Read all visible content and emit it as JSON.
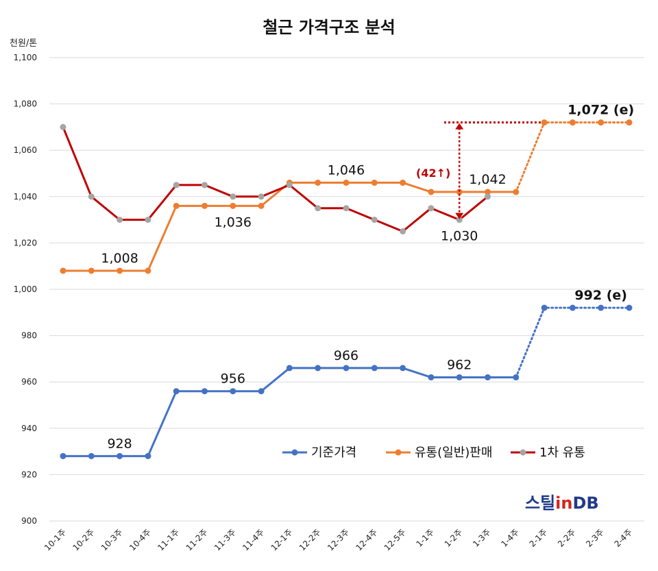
{
  "chart_data": {
    "type": "line",
    "title": "철근 가격구조 분석",
    "ylabel": "천원/톤",
    "xlabel": "",
    "ylim": [
      900,
      1100
    ],
    "yticks": [
      "900",
      "920",
      "940",
      "960",
      "980",
      "1,000",
      "1,020",
      "1,040",
      "1,060",
      "1,080",
      "1,100"
    ],
    "grid": true,
    "legend_position": "bottom-right",
    "categories": [
      "10-1주",
      "10-2주",
      "10-3주",
      "10-4주",
      "11-1주",
      "11-2주",
      "11-3주",
      "11-4주",
      "12-1주",
      "12-2주",
      "12-3주",
      "12-4주",
      "12-5주",
      "1-1주",
      "1-2주",
      "1-3주",
      "1-4주",
      "2-1주",
      "2-2주",
      "2-3주",
      "2-4주"
    ],
    "series": [
      {
        "name": "기준가격",
        "color": "#4472c4",
        "values": [
          928,
          928,
          928,
          928,
          956,
          956,
          956,
          956,
          966,
          966,
          966,
          966,
          966,
          962,
          962,
          962,
          962,
          992,
          992,
          992,
          992
        ],
        "dotted_from_index": 16
      },
      {
        "name": "유통(일반)판매",
        "color": "#ed7d31",
        "values": [
          1008,
          1008,
          1008,
          1008,
          1036,
          1036,
          1036,
          1036,
          1046,
          1046,
          1046,
          1046,
          1046,
          1042,
          1042,
          1042,
          1042,
          1072,
          1072,
          1072,
          1072
        ],
        "dotted_from_index": 16
      },
      {
        "name": "1차 유통",
        "color": "#c00000",
        "marker_color": "#a5a5a5",
        "values": [
          1070,
          1040,
          1030,
          1030,
          1045,
          1045,
          1040,
          1040,
          1045,
          1035,
          1035,
          1030,
          1025,
          1035,
          1030,
          1040,
          null,
          null,
          null,
          null,
          null
        ]
      }
    ],
    "data_labels": [
      {
        "text": "928",
        "x": "10-3주",
        "y": 928
      },
      {
        "text": "956",
        "x": "11-3주",
        "y": 956
      },
      {
        "text": "966",
        "x": "12-3주",
        "y": 966
      },
      {
        "text": "962",
        "x": "1-2주",
        "y": 962
      },
      {
        "text": "992 (e)",
        "x": "2-3주",
        "y": 992,
        "bold": true
      },
      {
        "text": "1,008",
        "x": "10-3주",
        "y": 1008
      },
      {
        "text": "1,036",
        "x": "11-3주",
        "y": 1036
      },
      {
        "text": "1,046",
        "x": "12-3주",
        "y": 1046
      },
      {
        "text": "1,042",
        "x": "1-3주",
        "y": 1042
      },
      {
        "text": "1,072 (e)",
        "x": "2-3주",
        "y": 1072,
        "bold": true
      },
      {
        "text": "1,030",
        "x": "1-2주",
        "y": 1030
      }
    ],
    "annotation": {
      "text": "(42↑)",
      "x": "1-2주",
      "y_from": 1030,
      "y_to": 1072,
      "color": "#c00000"
    }
  },
  "logo": {
    "part1": "스틸",
    "part2": "in",
    "part3": "DB"
  }
}
